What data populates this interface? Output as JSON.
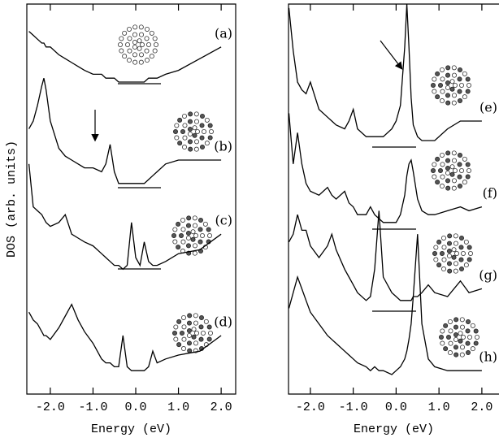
{
  "chart_data": [
    {
      "type": "line",
      "xlabel": "Energy (eV)",
      "ylabel": "DOS (arb. units)",
      "xlim": [
        -2.55,
        2.34
      ],
      "ylim": [
        0,
        100
      ],
      "xticks": [
        {
          "value": -2,
          "label": "-2.0"
        },
        {
          "value": -1,
          "label": "-1.0"
        },
        {
          "value": 0,
          "label": "0.0"
        },
        {
          "value": 1,
          "label": "1.0"
        },
        {
          "value": 2,
          "label": "2.0"
        }
      ],
      "x": [
        -2.5,
        -2.4,
        -2.3,
        -2.2,
        -2.15,
        -2.1,
        -2.0,
        -1.8,
        -1.65,
        -1.5,
        -1.35,
        -1.2,
        -1.0,
        -0.8,
        -0.7,
        -0.6,
        -0.5,
        -0.4,
        -0.3,
        -0.2,
        -0.1,
        0.0,
        0.1,
        0.2,
        0.3,
        0.4,
        0.5,
        0.7,
        1.0,
        1.5,
        2.0
      ],
      "series": [
        {
          "name": "(a)",
          "color": "#000000",
          "values": [
            93,
            92,
            91,
            90,
            90,
            89,
            89,
            87,
            86,
            85,
            84,
            83,
            82,
            82,
            81,
            81,
            81,
            80,
            80,
            80,
            80,
            80,
            80,
            80,
            81,
            81,
            81,
            82,
            83,
            86,
            89
          ]
        },
        {
          "name": "(b)",
          "color": "#000000",
          "values": [
            68,
            70,
            74,
            79,
            81,
            78,
            70,
            63,
            61,
            60,
            59,
            58,
            58,
            57,
            59,
            64,
            57,
            54,
            54,
            54,
            54,
            54,
            54,
            54,
            55,
            56,
            57,
            59,
            60,
            60,
            60
          ]
        },
        {
          "name": "(c)",
          "color": "#000000",
          "values": [
            59,
            48,
            47,
            46,
            45,
            44,
            43,
            44,
            46,
            41,
            40,
            39,
            38,
            36,
            35,
            34,
            33,
            33,
            32,
            33,
            44,
            35,
            33,
            39,
            34,
            33,
            33,
            34,
            36,
            37,
            41
          ]
        },
        {
          "name": "(d)",
          "color": "#000000",
          "values": [
            21,
            19,
            18,
            16,
            15,
            15,
            14,
            17,
            20,
            23,
            19,
            16,
            13,
            9,
            8,
            8,
            7,
            7,
            15,
            7,
            6,
            6,
            6,
            6,
            7,
            11,
            8,
            9,
            10,
            11,
            15
          ]
        }
      ]
    },
    {
      "type": "line",
      "xlabel": "Energy (eV)",
      "xlim": [
        -2.51,
        2.4
      ],
      "ylim": [
        0,
        100
      ],
      "xticks": [
        {
          "value": -2,
          "label": "-2.0"
        },
        {
          "value": -1,
          "label": "-1.0"
        },
        {
          "value": 0,
          "label": "0.0"
        },
        {
          "value": 1,
          "label": "1.0"
        },
        {
          "value": 2,
          "label": "2.0"
        }
      ],
      "x": [
        -2.5,
        -2.4,
        -2.3,
        -2.2,
        -2.1,
        -2.0,
        -1.8,
        -1.6,
        -1.5,
        -1.4,
        -1.2,
        -1.1,
        -1.0,
        -0.9,
        -0.7,
        -0.6,
        -0.5,
        -0.4,
        -0.3,
        -0.1,
        0.0,
        0.1,
        0.2,
        0.25,
        0.3,
        0.35,
        0.4,
        0.5,
        0.6,
        0.75,
        0.9,
        1.2,
        1.5,
        1.7,
        2.0
      ],
      "series": [
        {
          "name": "(e)",
          "color": "#000000",
          "values": [
            99,
            88,
            80,
            78,
            77,
            80,
            73,
            71,
            70,
            69,
            68,
            70,
            73,
            68,
            66,
            66,
            66,
            66,
            66,
            68,
            70,
            74,
            89,
            100,
            89,
            76,
            69,
            66,
            65,
            65,
            65,
            68,
            70,
            70,
            70
          ]
        },
        {
          "name": "(f)",
          "color": "#000000",
          "values": [
            72,
            59,
            67,
            59,
            54,
            52,
            51,
            53,
            51,
            50,
            52,
            49,
            48,
            46,
            46,
            48,
            46,
            45,
            44,
            44,
            44,
            46,
            51,
            56,
            59,
            60,
            57,
            50,
            47,
            46,
            46,
            47,
            48,
            47,
            48
          ]
        },
        {
          "name": "(g)",
          "color": "#000000",
          "values": [
            39,
            41,
            46,
            42,
            42,
            38,
            35,
            38,
            41,
            37,
            32,
            30,
            28,
            26,
            24,
            25,
            32,
            47,
            30,
            26,
            25,
            24,
            24,
            24,
            24,
            24,
            25,
            25,
            26,
            28,
            26,
            25,
            29,
            26,
            27
          ]
        },
        {
          "name": "(h)",
          "color": "#000000",
          "values": [
            22,
            26,
            30,
            27,
            24,
            21,
            18,
            15,
            14,
            13,
            11,
            10,
            9,
            8,
            7,
            6,
            7,
            6,
            6,
            5,
            6,
            7,
            9,
            11,
            14,
            18,
            25,
            41,
            18,
            9,
            7,
            6,
            6,
            6,
            6
          ]
        }
      ]
    }
  ]
}
